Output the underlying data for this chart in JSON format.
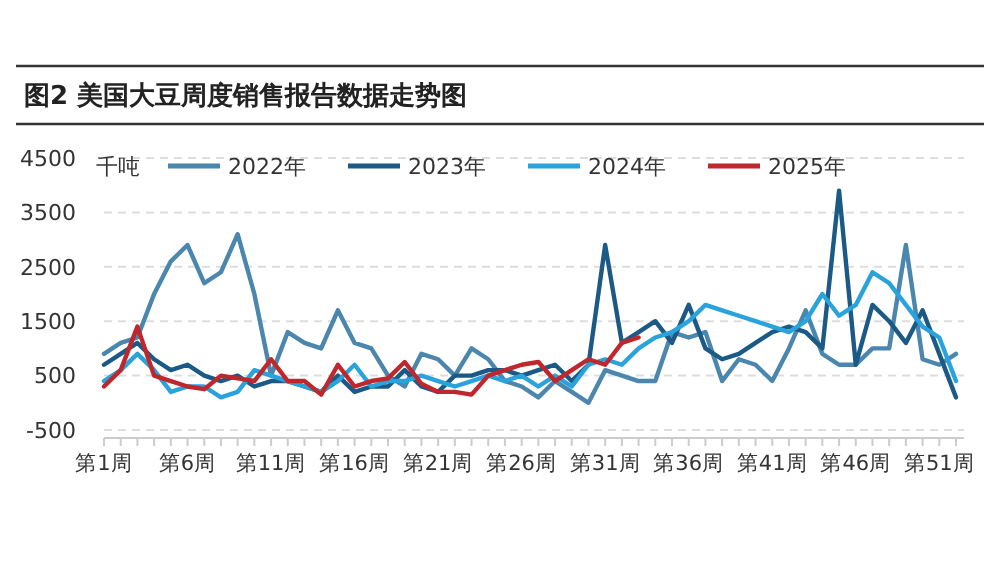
{
  "chart_data": {
    "type": "line",
    "title": "图2 美国大豆周度销售报告数据走势图",
    "ylabel": "千吨",
    "categories": [
      "第1周",
      null,
      null,
      null,
      null,
      "第6周",
      null,
      null,
      null,
      null,
      "第11周",
      null,
      null,
      null,
      null,
      "第16周",
      null,
      null,
      null,
      null,
      "第21周",
      null,
      null,
      null,
      null,
      "第26周",
      null,
      null,
      null,
      null,
      "第31周",
      null,
      null,
      null,
      null,
      "第36周",
      null,
      null,
      null,
      null,
      "第41周",
      null,
      null,
      null,
      null,
      "第46周",
      null,
      null,
      null,
      null,
      "第51周",
      null
    ],
    "series": [
      {
        "name": "2022年",
        "color": "#4a86ad",
        "values": [
          900,
          1100,
          1200,
          2000,
          2600,
          2900,
          2200,
          2400,
          3100,
          2000,
          500,
          1300,
          1100,
          1000,
          1700,
          1100,
          1000,
          500,
          300,
          900,
          800,
          500,
          1000,
          800,
          400,
          300,
          100,
          400,
          200,
          0,
          600,
          500,
          400,
          400,
          1300,
          1200,
          1300,
          400,
          800,
          700,
          400,
          1000,
          1700,
          900,
          700,
          700,
          1000,
          1000,
          2900,
          800,
          700,
          900
        ]
      },
      {
        "name": "2023年",
        "color": "#1b5a86",
        "values": [
          700,
          900,
          1100,
          800,
          600,
          700,
          500,
          400,
          500,
          300,
          400,
          400,
          300,
          200,
          500,
          200,
          300,
          300,
          600,
          300,
          200,
          500,
          500,
          600,
          600,
          500,
          600,
          700,
          400,
          700,
          2900,
          1100,
          1300,
          1500,
          1100,
          1800,
          1000,
          800,
          900,
          1100,
          1300,
          1400,
          1300,
          1000,
          3900,
          700,
          1800,
          1500,
          1100,
          1700,
          900,
          100
        ]
      },
      {
        "name": "2024年",
        "color": "#2aa3dc",
        "values": [
          400,
          600,
          900,
          600,
          200,
          300,
          300,
          100,
          200,
          600,
          500,
          400,
          300,
          200,
          400,
          700,
          300,
          400,
          400,
          500,
          400,
          300,
          400,
          500,
          400,
          500,
          300,
          500,
          300,
          700,
          800,
          700,
          1000,
          1200,
          1300,
          1500,
          1800,
          1700,
          1600,
          1500,
          1400,
          1300,
          1500,
          2000,
          1600,
          1800,
          2400,
          2200,
          1800,
          1400,
          1200,
          400
        ]
      },
      {
        "name": "2025年",
        "color": "#c0272d",
        "values": [
          300,
          600,
          1400,
          500,
          400,
          300,
          250,
          500,
          450,
          400,
          800,
          400,
          400,
          150,
          700,
          300,
          400,
          450,
          750,
          350,
          200,
          200,
          150,
          500,
          600,
          700,
          750,
          400,
          600,
          800,
          700,
          1100,
          1200,
          null,
          null,
          null,
          null,
          null,
          null,
          null,
          null,
          null,
          null,
          null,
          null,
          null,
          null,
          null,
          null,
          null,
          null,
          null
        ]
      }
    ],
    "ylim": [
      -500,
      4500
    ],
    "yticks": [
      -500,
      500,
      1500,
      2500,
      3500,
      4500
    ],
    "grid": "y",
    "legend": "top"
  }
}
